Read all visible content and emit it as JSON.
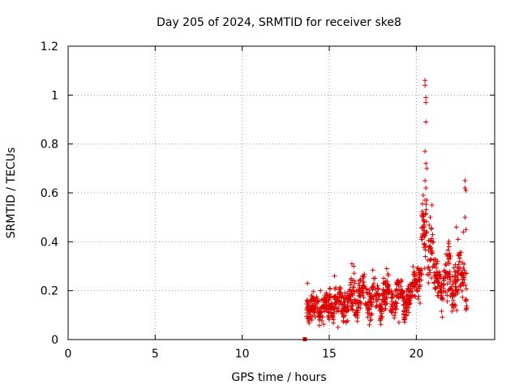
{
  "chart_data": {
    "type": "scatter",
    "title": "Day 205 of 2024, SRMTID for receiver ske8",
    "xlabel": "GPS time / hours",
    "ylabel": "SRMTID / TECUs",
    "xlim": [
      0,
      24.5
    ],
    "ylim": [
      0,
      1.2
    ],
    "x_ticks": [
      0,
      5,
      10,
      15,
      20
    ],
    "x_tick_labels": [
      "0",
      "5",
      "10",
      "15",
      "20"
    ],
    "y_ticks": [
      0,
      0.2,
      0.4,
      0.6,
      0.8,
      1.0,
      1.2
    ],
    "y_tick_labels": [
      "0",
      "0.2",
      "0.4",
      "0.6",
      "0.8",
      "1",
      "1.2"
    ],
    "grid": true,
    "marker": "plus",
    "series_color": "#dd0000",
    "zero_marker": {
      "x": 13.6,
      "y": 0.0
    },
    "x_range_of_data": [
      13.7,
      22.9
    ],
    "segments": [
      {
        "x0": 13.7,
        "x1": 15.0,
        "base": 0.13,
        "spread": 0.05,
        "amp": 0.02
      },
      {
        "x0": 15.0,
        "x1": 16.2,
        "base": 0.15,
        "spread": 0.06,
        "amp": 0.03
      },
      {
        "x0": 16.2,
        "x1": 17.5,
        "base": 0.18,
        "spread": 0.07,
        "amp": 0.04
      },
      {
        "x0": 17.5,
        "x1": 19.8,
        "base": 0.17,
        "spread": 0.06,
        "amp": 0.04
      },
      {
        "x0": 19.8,
        "x1": 20.3,
        "base": 0.25,
        "spread": 0.07,
        "amp": 0.03
      },
      {
        "x0": 20.3,
        "x1": 21.0,
        "base": 0.4,
        "spread": 0.12,
        "amp": 0.05
      },
      {
        "x0": 21.0,
        "x1": 21.6,
        "base": 0.23,
        "spread": 0.07,
        "amp": 0.03
      },
      {
        "x0": 21.6,
        "x1": 22.9,
        "base": 0.24,
        "spread": 0.09,
        "amp": 0.05
      }
    ],
    "peaks": [
      {
        "x": 20.5,
        "y": 1.06
      },
      {
        "x": 20.5,
        "y": 1.04
      },
      {
        "x": 20.55,
        "y": 0.99
      },
      {
        "x": 20.55,
        "y": 0.97
      },
      {
        "x": 20.55,
        "y": 0.89
      },
      {
        "x": 20.5,
        "y": 0.77
      },
      {
        "x": 20.55,
        "y": 0.72
      },
      {
        "x": 20.6,
        "y": 0.7
      },
      {
        "x": 20.5,
        "y": 0.65
      },
      {
        "x": 20.55,
        "y": 0.62
      },
      {
        "x": 20.4,
        "y": 0.59
      },
      {
        "x": 20.5,
        "y": 0.57
      },
      {
        "x": 20.6,
        "y": 0.57
      },
      {
        "x": 20.9,
        "y": 0.55
      },
      {
        "x": 20.8,
        "y": 0.5
      },
      {
        "x": 22.8,
        "y": 0.65
      },
      {
        "x": 22.8,
        "y": 0.62
      },
      {
        "x": 22.85,
        "y": 0.61
      },
      {
        "x": 22.8,
        "y": 0.5
      },
      {
        "x": 22.85,
        "y": 0.45
      },
      {
        "x": 22.7,
        "y": 0.44
      },
      {
        "x": 22.3,
        "y": 0.46
      },
      {
        "x": 22.4,
        "y": 0.41
      },
      {
        "x": 16.3,
        "y": 0.31
      },
      {
        "x": 16.4,
        "y": 0.3
      },
      {
        "x": 18.3,
        "y": 0.29
      },
      {
        "x": 13.75,
        "y": 0.23
      },
      {
        "x": 14.5,
        "y": 0.2
      },
      {
        "x": 15.3,
        "y": 0.26
      },
      {
        "x": 15.5,
        "y": 0.05
      },
      {
        "x": 17.3,
        "y": 0.06
      },
      {
        "x": 19.0,
        "y": 0.07
      },
      {
        "x": 14.0,
        "y": 0.08
      }
    ]
  }
}
